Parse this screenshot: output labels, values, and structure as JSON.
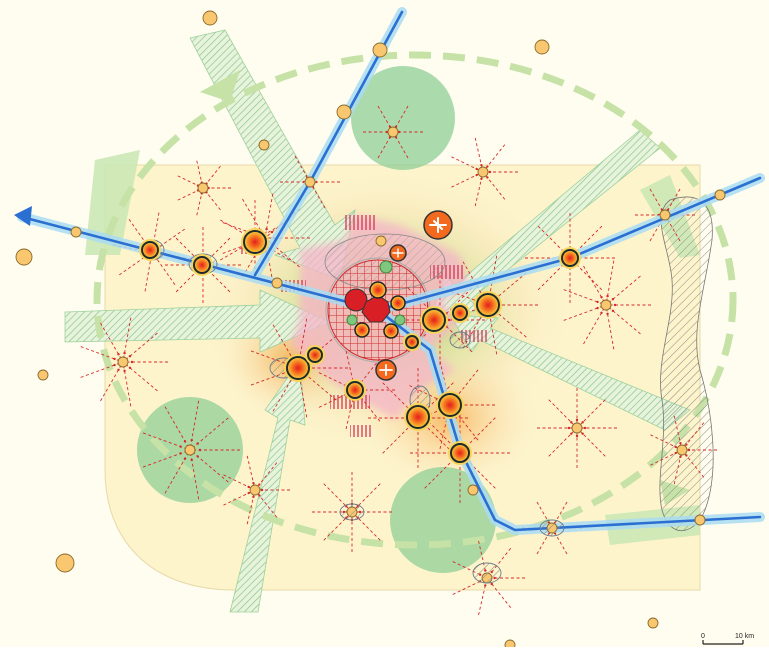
{
  "scale_bar": {
    "start_label": "0",
    "end_label": "10 km"
  },
  "colors": {
    "background": "#fffbe8",
    "urban_zone": "#fdf6d2",
    "green_area": "#8fcf95",
    "green_arrow": "#cfe8b9",
    "ring_dashes": "#c6e2a6",
    "transport_line": "#2a6fd1",
    "transport_glow": "#a9dcf2",
    "town_fill": "#f8c770",
    "town_stroke": "#8a6a2a",
    "pole_core": "#e8301f",
    "pole_glow": "#f6a32b",
    "pole_ring": "#1f2a2a",
    "center_red": "#d91f26",
    "spoke": "#d62a2a",
    "pink_zone": "#f1a6c3"
  },
  "icons": [
    "airport-icon",
    "town-marker",
    "pole-marker",
    "flow-arrow"
  ]
}
